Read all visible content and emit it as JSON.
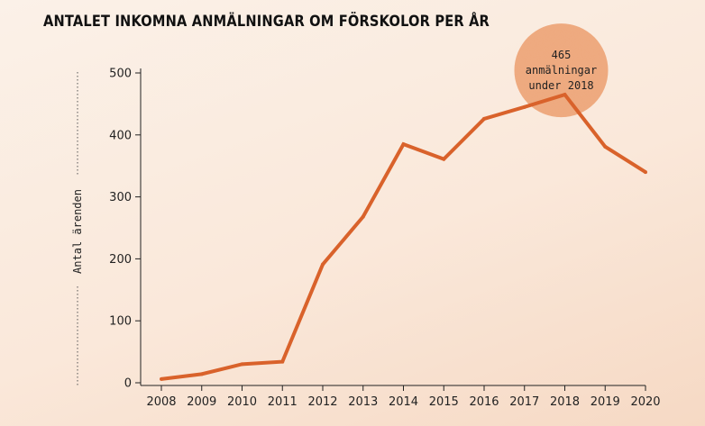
{
  "chart_data": {
    "type": "line",
    "title": "ANTALET INKOMNA ANMÄLNINGAR OM FÖRSKOLOR PER ÅR",
    "ylabel": "Antal ärenden",
    "xlabel": "",
    "x": [
      "2008",
      "2009",
      "2010",
      "2011",
      "2012",
      "2013",
      "2014",
      "2015",
      "2016",
      "2017",
      "2018",
      "2019",
      "2020"
    ],
    "series": [
      {
        "values": [
          6,
          14,
          30,
          34,
          191,
          268,
          385,
          361,
          426,
          445,
          465,
          381,
          340
        ]
      }
    ],
    "ylim": [
      0,
      500
    ],
    "yticks": [
      0,
      100,
      200,
      300,
      400,
      500
    ],
    "grid": false,
    "line_color": "#d9622b",
    "annotation": {
      "lines": [
        "465",
        "anmälningar",
        "under 2018"
      ],
      "target_year": "2018",
      "target_value": 465,
      "bubble_color": "#eea87e"
    }
  }
}
